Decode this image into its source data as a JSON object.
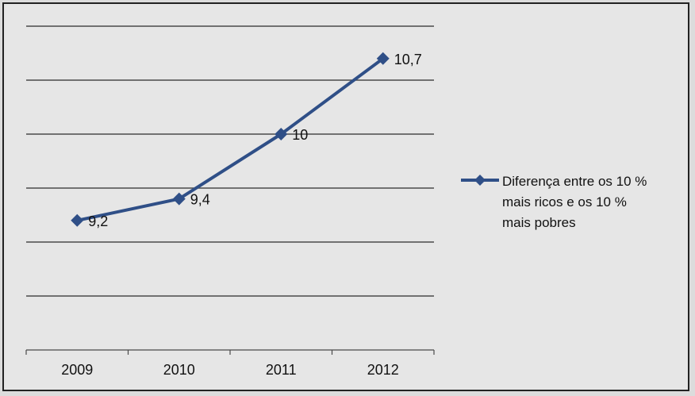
{
  "chart_data": {
    "type": "line",
    "categories": [
      "2009",
      "2010",
      "2011",
      "2012"
    ],
    "series": [
      {
        "name": "Diferença entre os 10 % mais ricos e os 10 % mais pobres",
        "values": [
          9.2,
          9.4,
          10,
          10.7
        ],
        "data_labels": [
          "9,2",
          "9,4",
          "10",
          "10,7"
        ],
        "color": "#2f4f87",
        "marker": "diamond"
      }
    ],
    "legend_lines": [
      "Diferença entre os 10 %",
      "mais ricos e os 10 %",
      "mais pobres"
    ],
    "legend_position": "right",
    "ylim": [
      8,
      11
    ],
    "y_gridlines": [
      8,
      8.5,
      9,
      9.5,
      10,
      10.5,
      11
    ],
    "grid": true,
    "y_tick_labels_visible": false,
    "background_color": "#e6e6e6"
  }
}
